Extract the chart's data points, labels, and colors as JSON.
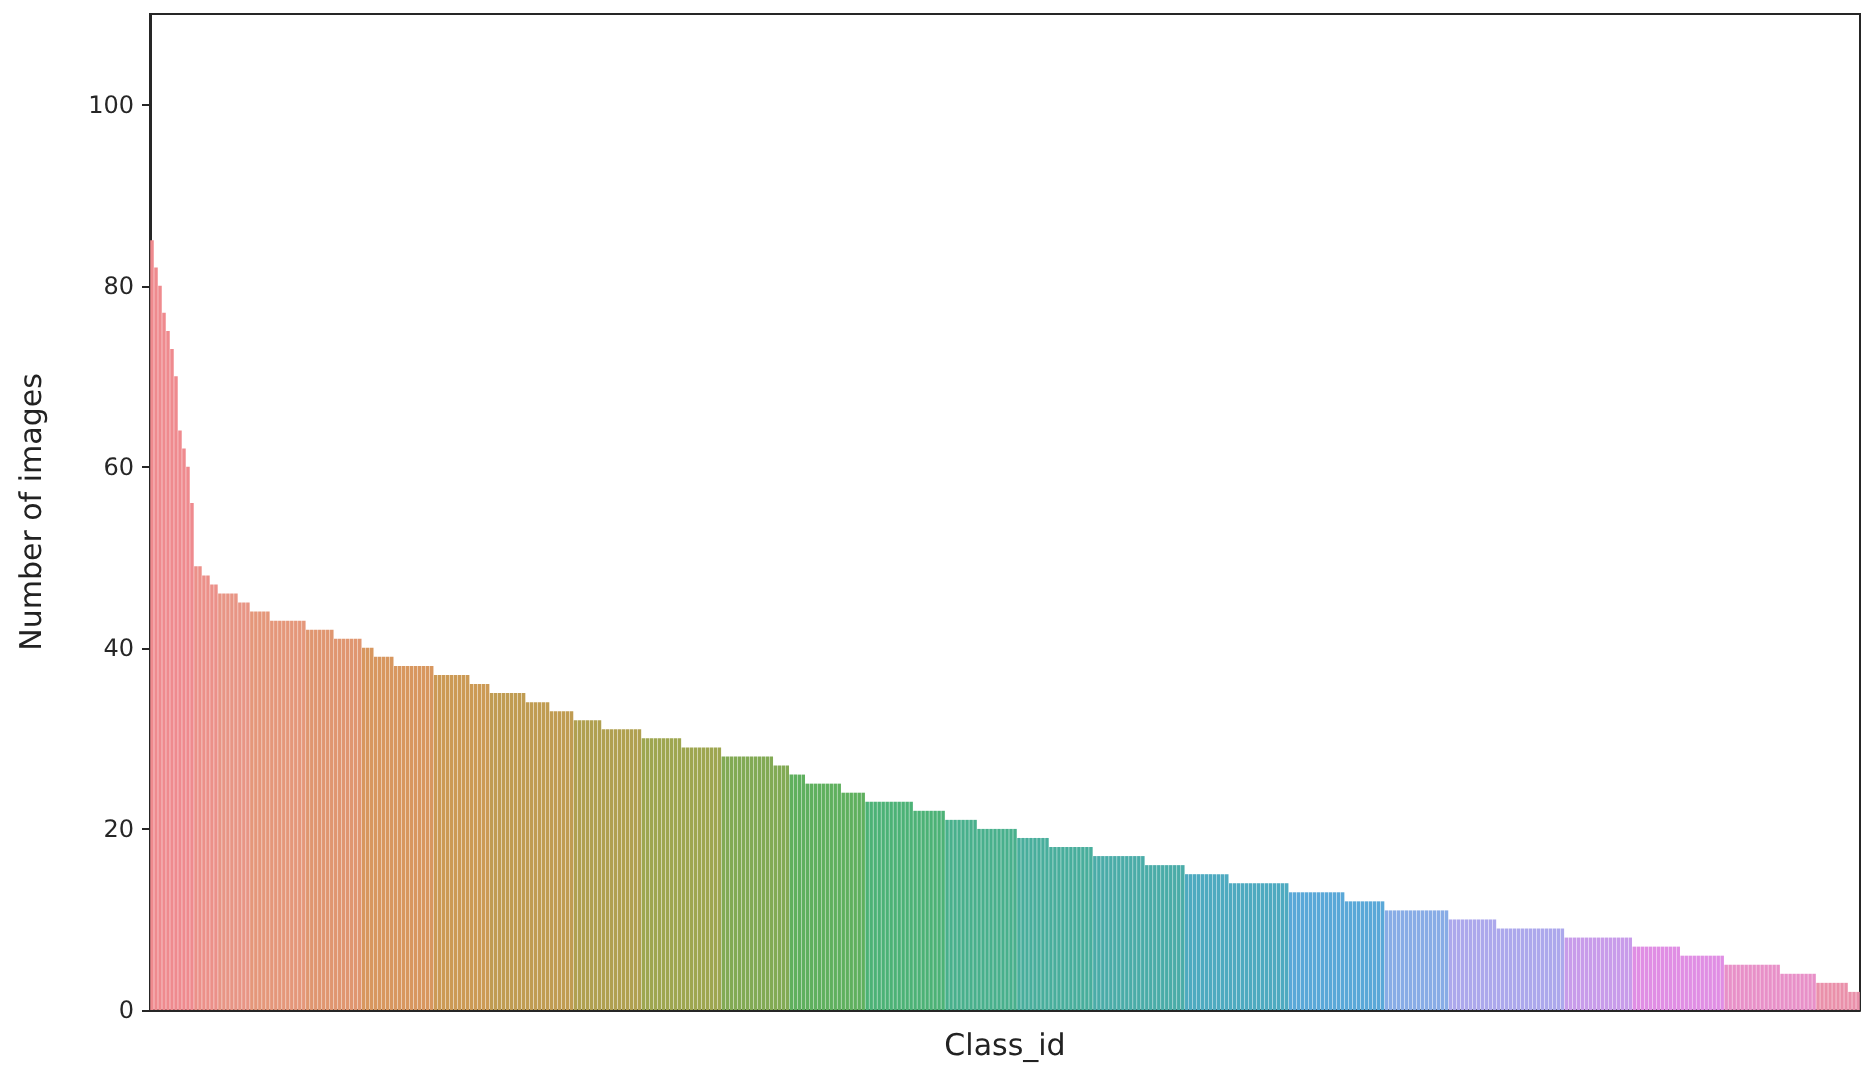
{
  "chart_data": {
    "type": "bar",
    "xlabel": "Class_id",
    "ylabel": "Number of images",
    "ylim": [
      0,
      110
    ],
    "yticks": [
      0,
      20,
      40,
      60,
      80,
      100
    ],
    "grid": false,
    "tick_labels": "y",
    "categories": [
      null,
      null,
      null,
      null,
      null,
      null,
      null,
      null,
      null,
      null,
      null,
      null,
      null,
      null,
      null,
      null,
      null,
      null,
      null,
      null,
      null,
      null,
      null,
      null,
      null,
      null,
      null,
      null,
      null,
      null,
      null,
      null,
      null,
      null,
      null,
      null,
      null,
      null,
      null,
      null,
      null,
      null,
      null,
      null,
      null,
      null,
      null,
      null,
      null,
      null,
      null,
      null,
      null,
      null,
      null,
      null,
      null,
      null,
      null,
      null,
      null,
      null,
      null,
      null,
      null,
      null,
      null,
      null,
      null,
      null,
      null,
      null,
      null,
      null,
      null,
      null,
      null,
      null,
      null,
      null,
      null,
      null,
      null,
      null,
      null,
      null,
      null,
      null,
      null,
      null,
      null,
      null,
      null,
      null,
      null,
      null,
      null,
      null,
      null,
      null,
      null,
      null,
      null,
      null,
      null,
      null,
      null,
      null,
      null,
      null,
      null,
      null,
      null,
      null,
      null,
      null,
      null,
      null,
      null,
      null,
      null,
      null,
      null,
      null,
      null,
      null,
      null,
      null,
      null,
      null,
      null,
      null,
      null,
      null,
      null,
      null,
      null,
      null,
      null,
      null,
      null,
      null,
      null,
      null,
      null,
      null,
      null,
      null,
      null,
      null,
      null,
      null,
      null,
      null,
      null,
      null,
      null,
      null,
      null,
      null,
      null,
      null,
      null,
      null,
      null,
      null,
      null,
      null,
      null,
      null,
      null,
      null,
      null,
      null,
      null,
      null,
      null,
      null,
      null,
      null,
      null,
      null,
      null,
      null,
      null,
      null,
      null,
      null,
      null,
      null,
      null,
      null,
      null,
      null,
      null,
      null,
      null,
      null,
      null,
      null,
      null,
      null,
      null,
      null,
      null,
      null,
      null,
      null,
      null,
      null,
      null,
      null,
      null,
      null,
      null,
      null,
      null,
      null,
      null,
      null,
      null,
      null,
      null,
      null,
      null,
      null,
      null,
      null,
      null,
      null,
      null,
      null,
      null,
      null,
      null,
      null,
      null,
      null,
      null,
      null,
      null,
      null,
      null,
      null,
      null,
      null,
      null,
      null,
      null,
      null,
      null,
      null,
      null,
      null,
      null,
      null,
      null,
      null,
      null,
      null,
      null,
      null,
      null,
      null,
      null,
      null,
      null,
      null,
      null,
      null,
      null,
      null,
      null,
      null,
      null,
      null,
      null,
      null,
      null,
      null,
      null,
      null,
      null,
      null,
      null,
      null,
      null,
      null,
      null,
      null,
      null,
      null,
      null,
      null,
      null,
      null,
      null,
      null,
      null,
      null,
      null,
      null,
      null,
      null,
      null,
      null,
      null,
      null,
      null,
      null,
      null,
      null,
      null,
      null,
      null,
      null,
      null,
      null,
      null,
      null,
      null,
      null,
      null,
      null,
      null,
      null,
      null,
      null,
      null,
      null,
      null,
      null,
      null,
      null,
      null,
      null,
      null,
      null,
      null,
      null,
      null,
      null,
      null,
      null,
      null,
      null,
      null,
      null,
      null,
      null,
      null,
      null,
      null,
      null,
      null,
      null,
      null,
      null,
      null,
      null,
      null,
      null,
      null,
      null,
      null,
      null,
      null,
      null,
      null,
      null,
      null,
      null,
      null,
      null,
      null,
      null,
      null,
      null,
      null,
      null,
      null,
      null,
      null,
      null,
      null,
      null,
      null,
      null,
      null,
      null,
      null,
      null,
      null,
      null,
      null,
      null,
      null,
      null,
      null,
      null,
      null,
      null,
      null,
      null,
      null,
      null,
      null,
      null,
      null,
      null,
      null,
      null,
      null,
      null,
      null,
      null,
      null,
      null,
      null,
      null,
      null,
      null,
      null,
      null,
      null,
      null,
      null,
      null
    ],
    "values": [
      85,
      82,
      80,
      77,
      75,
      73,
      70,
      64,
      62,
      60,
      56,
      49,
      49,
      48,
      48,
      47,
      47,
      46,
      46,
      46,
      46,
      46,
      45,
      45,
      45,
      44,
      44,
      44,
      44,
      44,
      43,
      43,
      43,
      43,
      43,
      43,
      43,
      43,
      43,
      42,
      42,
      42,
      42,
      42,
      42,
      42,
      41,
      41,
      41,
      41,
      41,
      41,
      41,
      40,
      40,
      40,
      39,
      39,
      39,
      39,
      39,
      38,
      38,
      38,
      38,
      38,
      38,
      38,
      38,
      38,
      38,
      37,
      37,
      37,
      37,
      37,
      37,
      37,
      37,
      37,
      36,
      36,
      36,
      36,
      36,
      35,
      35,
      35,
      35,
      35,
      35,
      35,
      35,
      35,
      34,
      34,
      34,
      34,
      34,
      34,
      33,
      33,
      33,
      33,
      33,
      33,
      32,
      32,
      32,
      32,
      32,
      32,
      32,
      31,
      31,
      31,
      31,
      31,
      31,
      31,
      31,
      31,
      31,
      30,
      30,
      30,
      30,
      30,
      30,
      30,
      30,
      30,
      30,
      29,
      29,
      29,
      29,
      29,
      29,
      29,
      29,
      29,
      29,
      28,
      28,
      28,
      28,
      28,
      28,
      28,
      28,
      28,
      28,
      28,
      28,
      28,
      27,
      27,
      27,
      27,
      26,
      26,
      26,
      26,
      25,
      25,
      25,
      25,
      25,
      25,
      25,
      25,
      25,
      24,
      24,
      24,
      24,
      24,
      24,
      23,
      23,
      23,
      23,
      23,
      23,
      23,
      23,
      23,
      23,
      23,
      23,
      22,
      22,
      22,
      22,
      22,
      22,
      22,
      22,
      21,
      21,
      21,
      21,
      21,
      21,
      21,
      21,
      20,
      20,
      20,
      20,
      20,
      20,
      20,
      20,
      20,
      20,
      19,
      19,
      19,
      19,
      19,
      19,
      19,
      19,
      18,
      18,
      18,
      18,
      18,
      18,
      18,
      18,
      18,
      18,
      18,
      17,
      17,
      17,
      17,
      17,
      17,
      17,
      17,
      17,
      17,
      17,
      17,
      17,
      16,
      16,
      16,
      16,
      16,
      16,
      16,
      16,
      16,
      16,
      15,
      15,
      15,
      15,
      15,
      15,
      15,
      15,
      15,
      15,
      15,
      14,
      14,
      14,
      14,
      14,
      14,
      14,
      14,
      14,
      14,
      14,
      14,
      14,
      14,
      14,
      13,
      13,
      13,
      13,
      13,
      13,
      13,
      13,
      13,
      13,
      13,
      13,
      13,
      13,
      12,
      12,
      12,
      12,
      12,
      12,
      12,
      12,
      12,
      12,
      11,
      11,
      11,
      11,
      11,
      11,
      11,
      11,
      11,
      11,
      11,
      11,
      11,
      11,
      11,
      11,
      10,
      10,
      10,
      10,
      10,
      10,
      10,
      10,
      10,
      10,
      10,
      10,
      9,
      9,
      9,
      9,
      9,
      9,
      9,
      9,
      9,
      9,
      9,
      9,
      9,
      9,
      9,
      9,
      9,
      8,
      8,
      8,
      8,
      8,
      8,
      8,
      8,
      8,
      8,
      8,
      8,
      8,
      8,
      8,
      8,
      8,
      7,
      7,
      7,
      7,
      7,
      7,
      7,
      7,
      7,
      7,
      7,
      7,
      6,
      6,
      6,
      6,
      6,
      6,
      6,
      6,
      6,
      6,
      6,
      5,
      5,
      5,
      5,
      5,
      5,
      5,
      5,
      5,
      5,
      5,
      5,
      5,
      5,
      4,
      4,
      4,
      4,
      4,
      4,
      4,
      4,
      4,
      3,
      3,
      3,
      3,
      3,
      3,
      3,
      3,
      2,
      2,
      2
    ],
    "colors": [
      "#ef8a8e",
      "#ef8a8e",
      "#ef8a8e",
      "#ef8a8e",
      "#ef8a8e",
      "#ef8a8e",
      "#ef8a8e",
      "#ef8a8e",
      "#ef8a8e",
      "#ef8a8e",
      "#ef8a8e",
      "#ec9089",
      "#ec9089",
      "#ec9089",
      "#ec9089",
      "#ec9089",
      "#ec9089",
      "#e89585",
      "#e89585",
      "#e89585",
      "#e89585",
      "#e89585",
      "#e89585",
      "#e89585",
      "#e89585",
      "#e5977a",
      "#e5977a",
      "#e5977a",
      "#e5977a",
      "#e5977a",
      "#e5977a",
      "#e5977a",
      "#e5977a",
      "#e5977a",
      "#e5977a",
      "#e5977a",
      "#e5977a",
      "#e5977a",
      "#e5977a",
      "#e09670",
      "#e09670",
      "#e09670",
      "#e09670",
      "#e09670",
      "#e09670",
      "#e09670",
      "#e09670",
      "#e09670",
      "#e09670",
      "#e09670",
      "#e09670",
      "#e09670",
      "#e09670",
      "#d8975f",
      "#d8975f",
      "#d8975f",
      "#d8975f",
      "#d8975f",
      "#d8975f",
      "#d8975f",
      "#d8975f",
      "#d8975f",
      "#d8975f",
      "#d8975f",
      "#d8975f",
      "#d8975f",
      "#d8975f",
      "#d8975f",
      "#d8975f",
      "#d8975f",
      "#d8975f",
      "#cc9a55",
      "#cc9a55",
      "#cc9a55",
      "#cc9a55",
      "#cc9a55",
      "#cc9a55",
      "#cc9a55",
      "#cc9a55",
      "#cc9a55",
      "#cc9a55",
      "#cc9a55",
      "#cc9a55",
      "#cc9a55",
      "#cc9a55",
      "#c09c52",
      "#c09c52",
      "#c09c52",
      "#c09c52",
      "#c09c52",
      "#c09c52",
      "#c09c52",
      "#c09c52",
      "#c09c52",
      "#c09c52",
      "#c09c52",
      "#c09c52",
      "#c09c52",
      "#c09c52",
      "#c09c52",
      "#c09c52",
      "#c09c52",
      "#c09c52",
      "#c09c52",
      "#c09c52",
      "#c09c52",
      "#b0a050",
      "#b0a050",
      "#b0a050",
      "#b0a050",
      "#b0a050",
      "#b0a050",
      "#b0a050",
      "#b0a050",
      "#b0a050",
      "#b0a050",
      "#b0a050",
      "#b0a050",
      "#b0a050",
      "#b0a050",
      "#b0a050",
      "#b0a050",
      "#b0a050",
      "#9ea650",
      "#9ea650",
      "#9ea650",
      "#9ea650",
      "#9ea650",
      "#9ea650",
      "#9ea650",
      "#9ea650",
      "#9ea650",
      "#9ea650",
      "#9ea650",
      "#9ea650",
      "#9ea650",
      "#9ea650",
      "#9ea650",
      "#9ea650",
      "#9ea650",
      "#9ea650",
      "#9ea650",
      "#9ea650",
      "#82aa54",
      "#82aa54",
      "#82aa54",
      "#82aa54",
      "#82aa54",
      "#82aa54",
      "#82aa54",
      "#82aa54",
      "#82aa54",
      "#82aa54",
      "#82aa54",
      "#82aa54",
      "#82aa54",
      "#82aa54",
      "#82aa54",
      "#82aa54",
      "#82aa54",
      "#5fb05e",
      "#5fb05e",
      "#5fb05e",
      "#5fb05e",
      "#5fb05e",
      "#5fb05e",
      "#5fb05e",
      "#5fb05e",
      "#5fb05e",
      "#5fb05e",
      "#5fb05e",
      "#5fb05e",
      "#5fb05e",
      "#5fb05e",
      "#5fb05e",
      "#5fb05e",
      "#5fb05e",
      "#5fb05e",
      "#5fb05e",
      "#4cb276",
      "#4cb276",
      "#4cb276",
      "#4cb276",
      "#4cb276",
      "#4cb276",
      "#4cb276",
      "#4cb276",
      "#4cb276",
      "#4cb276",
      "#4cb276",
      "#4cb276",
      "#4cb276",
      "#4cb276",
      "#4cb276",
      "#4cb276",
      "#4cb276",
      "#4cb276",
      "#4cb276",
      "#4cb276",
      "#48b08c",
      "#48b08c",
      "#48b08c",
      "#48b08c",
      "#48b08c",
      "#48b08c",
      "#48b08c",
      "#48b08c",
      "#48b08c",
      "#48b08c",
      "#48b08c",
      "#48b08c",
      "#48b08c",
      "#48b08c",
      "#48b08c",
      "#48b08c",
      "#48b08c",
      "#48b08c",
      "#48ae9c",
      "#48ae9c",
      "#48ae9c",
      "#48ae9c",
      "#48ae9c",
      "#48ae9c",
      "#48ae9c",
      "#48ae9c",
      "#48ae9c",
      "#48ae9c",
      "#48ae9c",
      "#48ae9c",
      "#48ae9c",
      "#48ae9c",
      "#48ae9c",
      "#48ae9c",
      "#48ae9c",
      "#48ae9c",
      "#48ae9c",
      "#4aaca8",
      "#4aaca8",
      "#4aaca8",
      "#4aaca8",
      "#4aaca8",
      "#4aaca8",
      "#4aaca8",
      "#4aaca8",
      "#4aaca8",
      "#4aaca8",
      "#4aaca8",
      "#4aaca8",
      "#4aaca8",
      "#4aaca8",
      "#4aaca8",
      "#4aaca8",
      "#4aaca8",
      "#4aaca8",
      "#4aaca8",
      "#4aaca8",
      "#4aaca8",
      "#4aaca8",
      "#4aaca8",
      "#4eaac0",
      "#4eaac0",
      "#4eaac0",
      "#4eaac0",
      "#4eaac0",
      "#4eaac0",
      "#4eaac0",
      "#4eaac0",
      "#4eaac0",
      "#4eaac0",
      "#4eaac0",
      "#4eaac0",
      "#4eaac0",
      "#4eaac0",
      "#4eaac0",
      "#4eaac0",
      "#4eaac0",
      "#4eaac0",
      "#4eaac0",
      "#4eaac0",
      "#4eaac0",
      "#4eaac0",
      "#4eaac0",
      "#4eaac0",
      "#4eaac0",
      "#4eaac0",
      "#5aa8d8",
      "#5aa8d8",
      "#5aa8d8",
      "#5aa8d8",
      "#5aa8d8",
      "#5aa8d8",
      "#5aa8d8",
      "#5aa8d8",
      "#5aa8d8",
      "#5aa8d8",
      "#5aa8d8",
      "#5aa8d8",
      "#5aa8d8",
      "#5aa8d8",
      "#5aa8d8",
      "#5aa8d8",
      "#5aa8d8",
      "#5aa8d8",
      "#5aa8d8",
      "#5aa8d8",
      "#5aa8d8",
      "#5aa8d8",
      "#5aa8d8",
      "#5aa8d8",
      "#88ace6",
      "#88ace6",
      "#88ace6",
      "#88ace6",
      "#88ace6",
      "#88ace6",
      "#88ace6",
      "#88ace6",
      "#88ace6",
      "#88ace6",
      "#88ace6",
      "#88ace6",
      "#88ace6",
      "#88ace6",
      "#88ace6",
      "#88ace6",
      "#aca8ec",
      "#aca8ec",
      "#aca8ec",
      "#aca8ec",
      "#aca8ec",
      "#aca8ec",
      "#aca8ec",
      "#aca8ec",
      "#aca8ec",
      "#aca8ec",
      "#aca8ec",
      "#aca8ec",
      "#aca8ec",
      "#aca8ec",
      "#aca8ec",
      "#aca8ec",
      "#aca8ec",
      "#aca8ec",
      "#aca8ec",
      "#aca8ec",
      "#aca8ec",
      "#aca8ec",
      "#aca8ec",
      "#aca8ec",
      "#aca8ec",
      "#aca8ec",
      "#aca8ec",
      "#aca8ec",
      "#aca8ec",
      "#c89cea",
      "#c89cea",
      "#c89cea",
      "#c89cea",
      "#c89cea",
      "#c89cea",
      "#c89cea",
      "#c89cea",
      "#c89cea",
      "#c89cea",
      "#c89cea",
      "#c89cea",
      "#c89cea",
      "#c89cea",
      "#c89cea",
      "#c89cea",
      "#c89cea",
      "#e08ee4",
      "#e08ee4",
      "#e08ee4",
      "#e08ee4",
      "#e08ee4",
      "#e08ee4",
      "#e08ee4",
      "#e08ee4",
      "#e08ee4",
      "#e08ee4",
      "#e08ee4",
      "#e08ee4",
      "#e08ee4",
      "#e08ee4",
      "#e08ee4",
      "#e08ee4",
      "#e08ee4",
      "#e08ee4",
      "#e08ee4",
      "#e08ee4",
      "#e08ee4",
      "#e08ee4",
      "#e08ee4",
      "#e890c8",
      "#e890c8",
      "#e890c8",
      "#e890c8",
      "#e890c8",
      "#e890c8",
      "#e890c8",
      "#e890c8",
      "#e890c8",
      "#e890c8",
      "#e890c8",
      "#e890c8",
      "#e890c8",
      "#e890c8",
      "#e890c8",
      "#e890c8",
      "#e890c8",
      "#e890c8",
      "#e890c8",
      "#e890c8",
      "#e890c8",
      "#e890c8",
      "#e890c8",
      "#ea90aa",
      "#ea90aa",
      "#ea90aa",
      "#ea90aa",
      "#ea90aa",
      "#ea90aa",
      "#ea90aa",
      "#ea90aa",
      "#ea90aa",
      "#ea90aa",
      "#ea90aa"
    ]
  }
}
